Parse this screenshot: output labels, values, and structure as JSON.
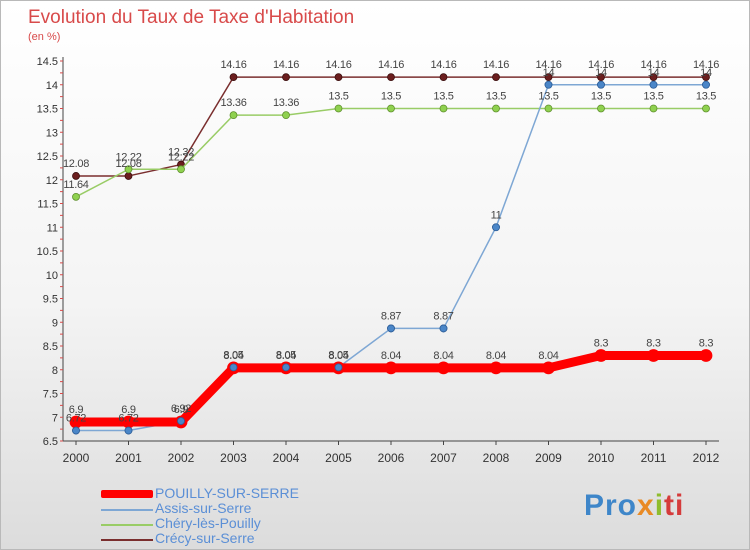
{
  "chart_data": {
    "type": "line",
    "title": "Evolution du Taux de Taxe d'Habitation",
    "ylabel": "(en %)",
    "xlabel": "",
    "categories": [
      "2000",
      "2001",
      "2002",
      "2003",
      "2004",
      "2005",
      "2006",
      "2007",
      "2008",
      "2009",
      "2010",
      "2011",
      "2012"
    ],
    "ylim": [
      6.5,
      14.5
    ],
    "yticks": [
      "6.5",
      "7",
      "7.5",
      "8",
      "8.5",
      "9",
      "9.5",
      "10",
      "10.5",
      "11",
      "11.5",
      "12",
      "12.5",
      "13",
      "13.5",
      "14",
      "14.5"
    ],
    "grid": false,
    "legend_position": "bottom-left",
    "series": [
      {
        "name": "POUILLY-SUR-SERRE",
        "color": "#ff0000",
        "values": [
          6.9,
          6.9,
          6.9,
          8.04,
          8.04,
          8.04,
          8.04,
          8.04,
          8.04,
          8.04,
          8.3,
          8.3,
          8.3
        ],
        "labels": [
          "6.9",
          "6.9",
          "6.9",
          "8.04",
          "8.04",
          "8.04",
          "8.04",
          "8.04",
          "8.04",
          "8.04",
          "8.3",
          "8.3",
          "8.3"
        ]
      },
      {
        "name": "Assis-sur-Serre",
        "color": "#7ea7d4",
        "values": [
          6.72,
          6.72,
          6.92,
          8.05,
          8.05,
          8.05,
          8.87,
          8.87,
          11,
          14,
          14,
          14,
          14
        ],
        "labels": [
          "6.72",
          "6.72",
          "6.92",
          "8.05",
          "8.05",
          "8.05",
          "8.87",
          "8.87",
          "11",
          "14",
          "14",
          "14",
          "14"
        ]
      },
      {
        "name": "Chéry-lès-Pouilly",
        "color": "#99cc66",
        "values": [
          11.64,
          12.22,
          12.22,
          13.36,
          13.36,
          13.5,
          13.5,
          13.5,
          13.5,
          13.5,
          13.5,
          13.5,
          13.5
        ],
        "labels": [
          "11.64",
          "12.22",
          "12.22",
          "13.36",
          "13.36",
          "13.5",
          "13.5",
          "13.5",
          "13.5",
          "13.5",
          "13.5",
          "13.5",
          "13.5"
        ]
      },
      {
        "name": "Crécy-sur-Serre",
        "color": "#7a2e2e",
        "values": [
          12.08,
          12.08,
          12.32,
          14.16,
          14.16,
          14.16,
          14.16,
          14.16,
          14.16,
          14.16,
          14.16,
          14.16,
          14.16
        ],
        "labels": [
          "12.08",
          "12.08",
          "12.32",
          "14.16",
          "14.16",
          "14.16",
          "14.16",
          "14.16",
          "14.16",
          "14.16",
          "14.16",
          "14.16",
          "14.16"
        ]
      }
    ]
  },
  "logo": {
    "p1": "Pro",
    "p2": "x",
    "p3": "i",
    "p4": "ti"
  }
}
